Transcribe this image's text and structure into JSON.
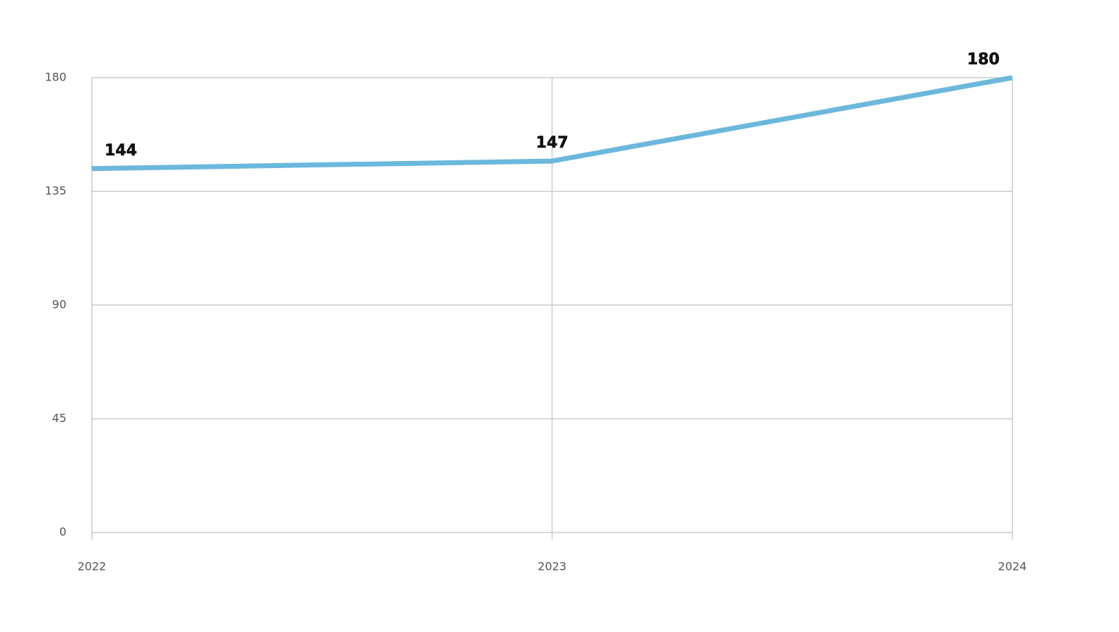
{
  "chart_data": {
    "type": "line",
    "x": [
      2022,
      2023,
      2024
    ],
    "series": [
      {
        "color": "#6bb8dc",
        "values": [
          144,
          147,
          180
        ]
      }
    ],
    "xlim": [
      2022,
      2024
    ],
    "xticks": [
      2022,
      2023,
      2024
    ],
    "ylim": [
      0,
      180
    ],
    "yticks": [
      0,
      45,
      90,
      135,
      180
    ],
    "grid": true
  }
}
